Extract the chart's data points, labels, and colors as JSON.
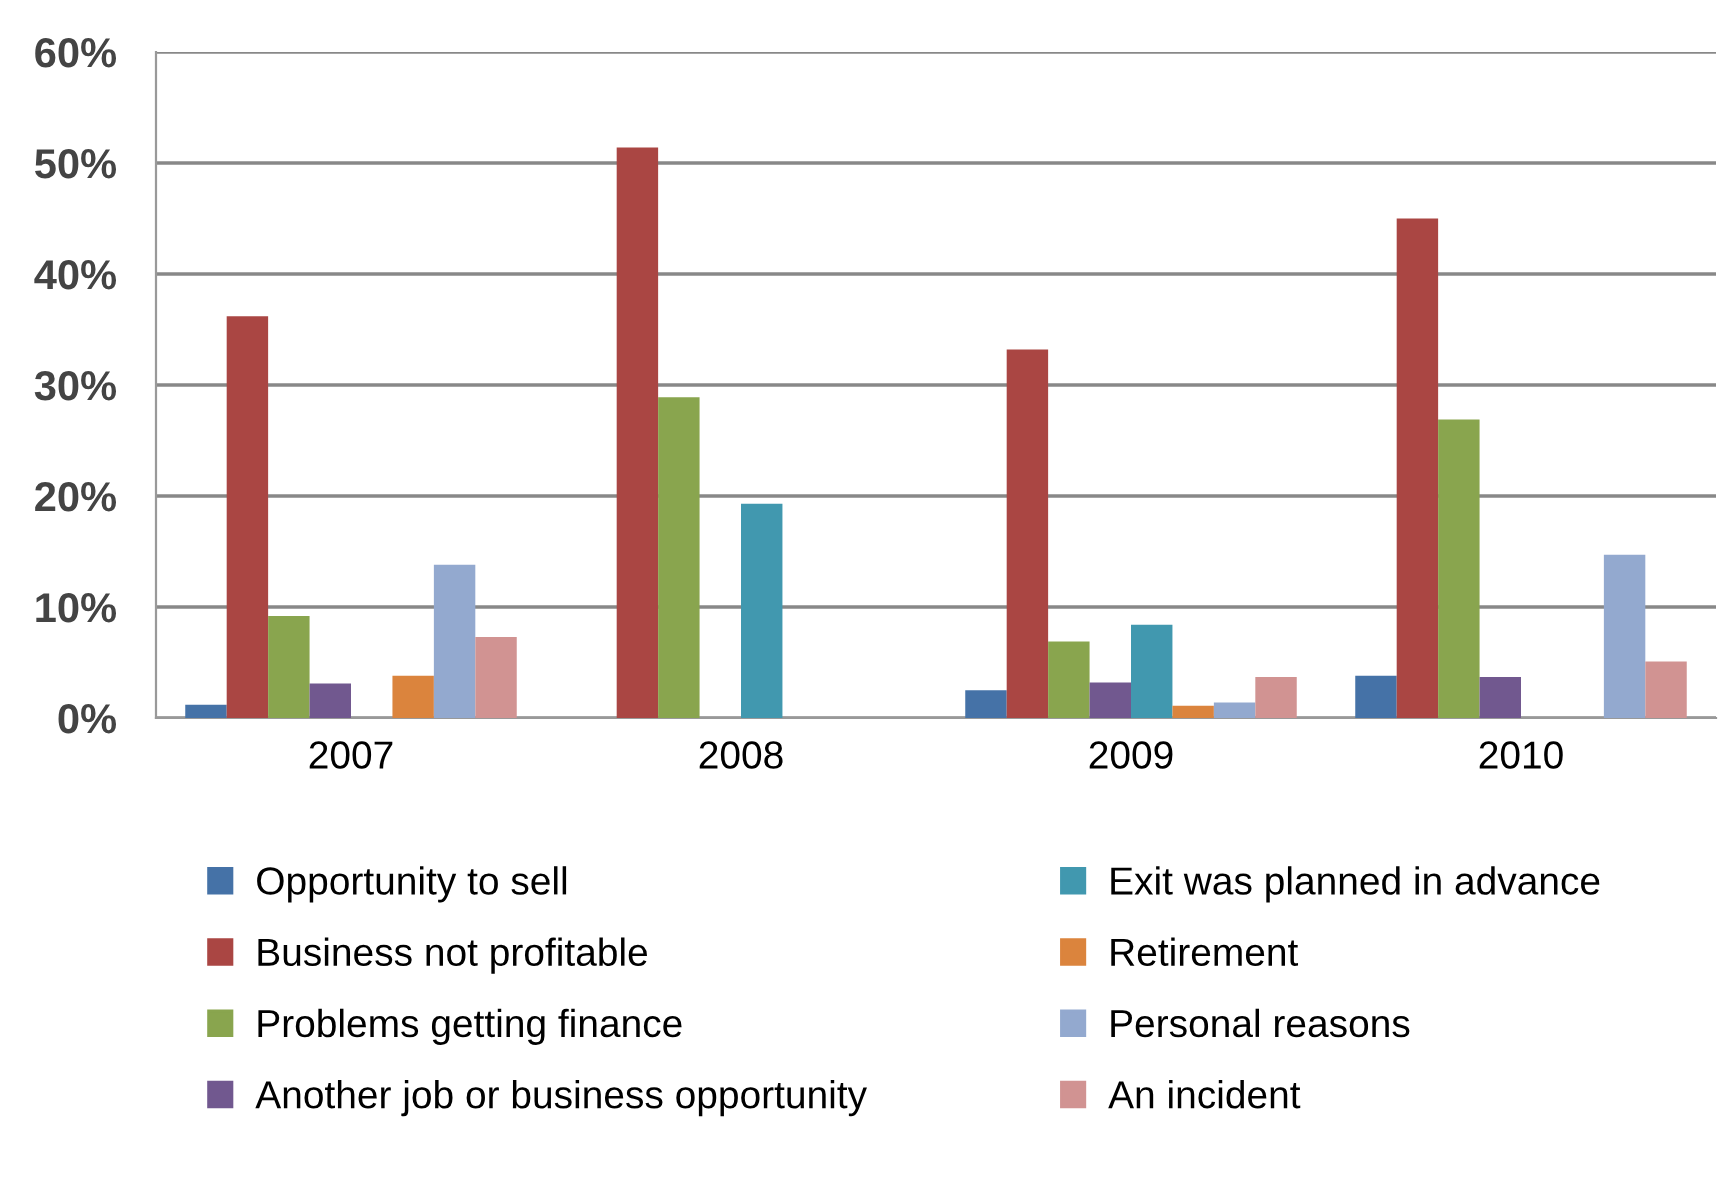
{
  "chart_data": {
    "type": "bar",
    "categories": [
      "2007",
      "2008",
      "2009",
      "2010"
    ],
    "series": [
      {
        "name": "Opportunity to sell",
        "color": "#4572a7",
        "values": [
          1.2,
          0,
          2.5,
          3.8
        ]
      },
      {
        "name": "Business not profitable",
        "color": "#aa4643",
        "values": [
          36.2,
          51.4,
          33.2,
          45.0
        ]
      },
      {
        "name": "Problems getting finance",
        "color": "#89a54e",
        "values": [
          9.2,
          28.9,
          6.9,
          26.9
        ]
      },
      {
        "name": "Another job or business opportunity",
        "color": "#71588f",
        "values": [
          3.1,
          0,
          3.2,
          3.7
        ]
      },
      {
        "name": "Exit was planned in advance",
        "color": "#4198af",
        "values": [
          0,
          19.3,
          8.4,
          0
        ]
      },
      {
        "name": "Retirement",
        "color": "#db843d",
        "values": [
          3.8,
          0,
          1.1,
          0
        ]
      },
      {
        "name": "Personal reasons",
        "color": "#93a9cf",
        "values": [
          13.8,
          0,
          1.4,
          14.7
        ]
      },
      {
        "name": "An incident",
        "color": "#d19392",
        "values": [
          7.3,
          0,
          3.7,
          5.1
        ]
      }
    ],
    "ylim": [
      0,
      60
    ],
    "yticks": [
      {
        "value": 0,
        "label": "0%"
      },
      {
        "value": 10,
        "label": "10%"
      },
      {
        "value": 20,
        "label": "20%"
      },
      {
        "value": 30,
        "label": "30%"
      },
      {
        "value": 40,
        "label": "40%"
      },
      {
        "value": 50,
        "label": "50%"
      },
      {
        "value": 60,
        "label": "60%"
      }
    ],
    "grid": "y",
    "legend": "bottom"
  }
}
